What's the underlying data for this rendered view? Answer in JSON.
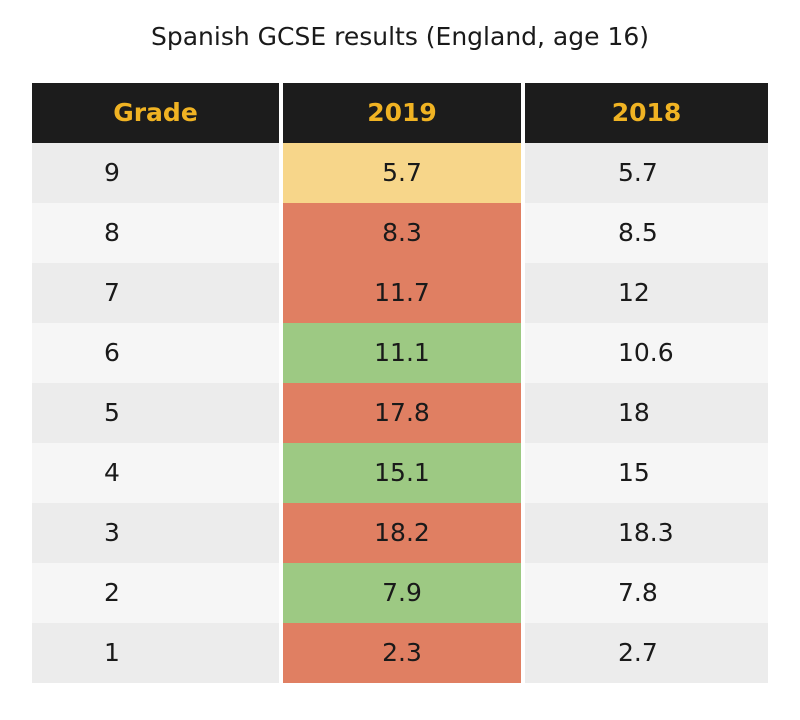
{
  "title": "Spanish GCSE results (England, age 16)",
  "table": {
    "header": [
      "Grade",
      "2019",
      "2018"
    ],
    "rows": [
      [
        9,
        5.7,
        5.7
      ],
      [
        8,
        8.3,
        8.5
      ],
      [
        7,
        11.7,
        12
      ],
      [
        6,
        11.1,
        10.6
      ],
      [
        5,
        17.8,
        18
      ],
      [
        4,
        15.1,
        15
      ],
      [
        3,
        18.2,
        18.3
      ],
      [
        2,
        7.9,
        7.8
      ],
      [
        1,
        2.3,
        2.7
      ]
    ],
    "highlight_colors": [
      "#f7d68a",
      "#e07f62",
      "#e07f62",
      "#9dc983",
      "#e07f62",
      "#9dc983",
      "#e07f62",
      "#9dc983",
      "#e07f62"
    ],
    "row_colors": [
      "#ececec",
      "#f6f6f6"
    ]
  }
}
